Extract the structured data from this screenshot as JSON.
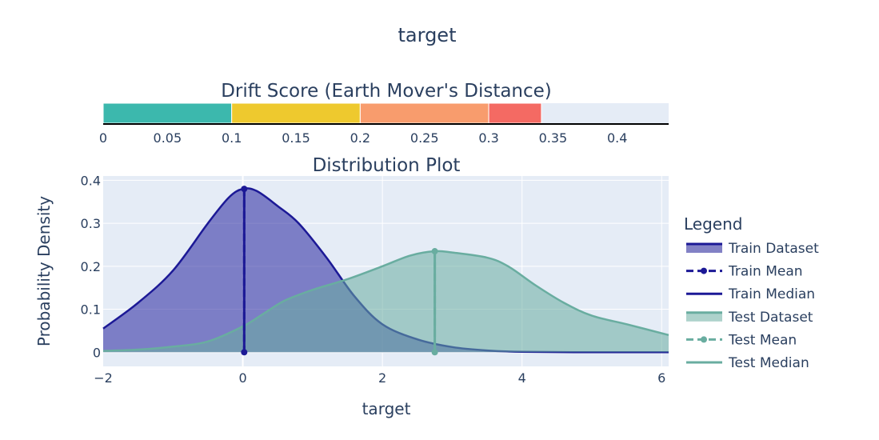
{
  "title": "target",
  "chart_data": [
    {
      "type": "bar",
      "orientation": "horizontal",
      "title": "Drift Score (Earth Mover's Distance)",
      "xlim": [
        0,
        0.44
      ],
      "x_ticks": [
        0,
        0.05,
        0.1,
        0.15,
        0.2,
        0.25,
        0.3,
        0.35,
        0.4
      ],
      "x_tick_labels": [
        "0",
        "0.05",
        "0.1",
        "0.15",
        "0.2",
        "0.25",
        "0.3",
        "0.35",
        "0.4"
      ],
      "segments": [
        {
          "start": 0,
          "end": 0.1,
          "color": "#3cb8ad"
        },
        {
          "start": 0.1,
          "end": 0.2,
          "color": "#eec92e"
        },
        {
          "start": 0.2,
          "end": 0.3,
          "color": "#f89c6d"
        },
        {
          "start": 0.3,
          "end": 0.341,
          "color": "#f46a63"
        }
      ],
      "value": 0.341
    },
    {
      "type": "area",
      "title": "Distribution Plot",
      "xlabel": "target",
      "ylabel": "Probability Density",
      "xlim": [
        -2,
        6.1
      ],
      "ylim": [
        -0.033,
        0.41
      ],
      "x_ticks": [
        -2,
        0,
        2,
        4,
        6
      ],
      "x_tick_labels": [
        "−2",
        "0",
        "2",
        "4",
        "6"
      ],
      "y_ticks": [
        0,
        0.1,
        0.2,
        0.3,
        0.4
      ],
      "y_tick_labels": [
        "0",
        "0.1",
        "0.2",
        "0.3",
        "0.4"
      ],
      "grid": true,
      "legend": {
        "title": "Legend",
        "placement": "right",
        "entries": [
          {
            "label": "Train Dataset",
            "style": "fill",
            "color": "#1c1996"
          },
          {
            "label": "Train Mean",
            "style": "dash-marker",
            "color": "#1c1996"
          },
          {
            "label": "Train Median",
            "style": "line",
            "color": "#1c1996"
          },
          {
            "label": "Test Dataset",
            "style": "fill",
            "color": "#69ada0"
          },
          {
            "label": "Test Mean",
            "style": "dash-marker",
            "color": "#69ada0"
          },
          {
            "label": "Test Median",
            "style": "line",
            "color": "#69ada0"
          }
        ]
      },
      "series": [
        {
          "name": "Train Dataset",
          "line_color": "#1c1996",
          "fill_color": "rgba(38,36,158,0.55)",
          "x": [
            -2.0,
            -1.5,
            -1.0,
            -0.5,
            -0.2,
            0.0,
            0.2,
            0.5,
            0.8,
            1.2,
            1.6,
            2.0,
            2.5,
            3.0,
            3.5,
            4.0,
            5.0,
            6.1
          ],
          "y": [
            0.055,
            0.115,
            0.19,
            0.3,
            0.36,
            0.38,
            0.375,
            0.34,
            0.3,
            0.22,
            0.13,
            0.065,
            0.03,
            0.012,
            0.004,
            0.001,
            0.0,
            0.0
          ]
        },
        {
          "name": "Test Dataset",
          "line_color": "#69ada0",
          "fill_color": "rgba(105,173,160,0.55)",
          "x": [
            -2.0,
            -1.5,
            -1.0,
            -0.5,
            0.0,
            0.3,
            0.6,
            1.0,
            1.5,
            2.0,
            2.4,
            2.75,
            3.0,
            3.5,
            3.8,
            4.2,
            4.6,
            5.0,
            5.5,
            6.1
          ],
          "y": [
            0.003,
            0.006,
            0.013,
            0.025,
            0.06,
            0.09,
            0.12,
            0.145,
            0.17,
            0.2,
            0.225,
            0.235,
            0.232,
            0.22,
            0.2,
            0.155,
            0.115,
            0.085,
            0.065,
            0.04
          ]
        }
      ],
      "markers": [
        {
          "name": "Train Mean",
          "x": 0.02,
          "y": 0.38,
          "color": "#1c1996",
          "dash": true
        },
        {
          "name": "Train Median",
          "x": 0.02,
          "y": 0.38,
          "color": "#1c1996",
          "dash": false
        },
        {
          "name": "Test Mean",
          "x": 2.75,
          "y": 0.235,
          "color": "#69ada0",
          "dash": true
        },
        {
          "name": "Test Median",
          "x": 2.75,
          "y": 0.235,
          "color": "#69ada0",
          "dash": false
        }
      ]
    }
  ]
}
